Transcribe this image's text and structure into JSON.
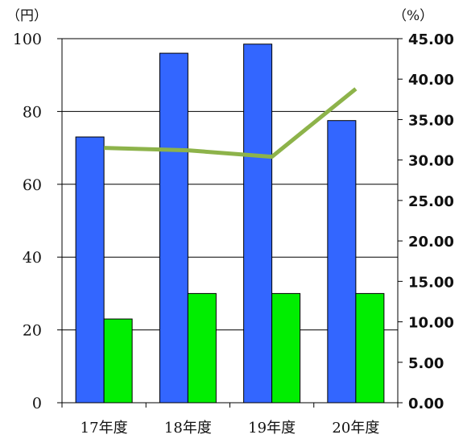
{
  "chart_data": {
    "type": "bar",
    "categories": [
      "17年度",
      "18年度",
      "19年度",
      "20年度"
    ],
    "series": [
      {
        "type": "bar",
        "axis": "left",
        "color": "#3366ff",
        "values": [
          73,
          96,
          98.5,
          77.5
        ]
      },
      {
        "type": "bar",
        "axis": "left",
        "color": "#00ee00",
        "values": [
          23,
          30,
          30,
          30
        ]
      },
      {
        "type": "line",
        "axis": "right",
        "color": "#8db34a",
        "values": [
          31.5,
          31.2,
          30.4,
          38.8
        ]
      }
    ],
    "left_axis": {
      "unit": "（円）",
      "ylim": [
        0,
        100
      ],
      "ticks": [
        "0",
        "20",
        "40",
        "60",
        "80",
        "100"
      ]
    },
    "right_axis": {
      "unit": "（%）",
      "ylim": [
        0,
        45
      ],
      "ticks": [
        "0.00",
        "5.00",
        "10.00",
        "15.00",
        "20.00",
        "25.00",
        "30.00",
        "35.00",
        "40.00",
        "45.00"
      ]
    },
    "grid": true
  }
}
